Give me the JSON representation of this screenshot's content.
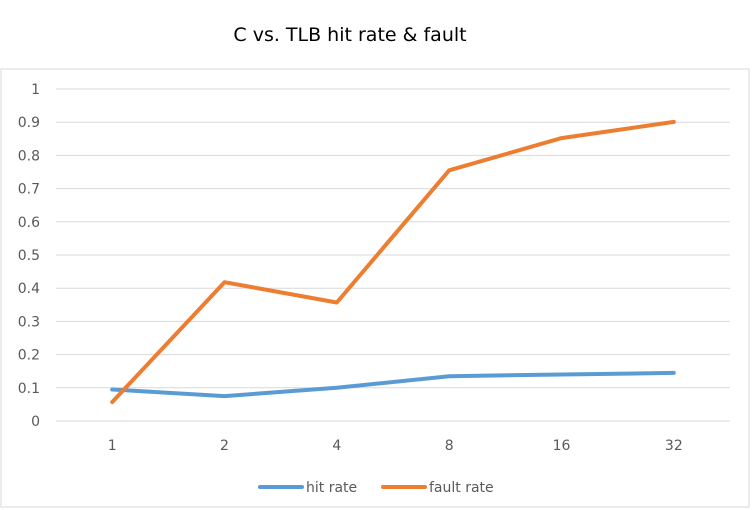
{
  "chart_data": {
    "type": "line",
    "title": "C vs. TLB hit rate & fault",
    "xlabel": "",
    "ylabel": "",
    "categories": [
      "1",
      "2",
      "4",
      "8",
      "16",
      "32"
    ],
    "series": [
      {
        "name": "hit rate",
        "color": "#5b9bd5",
        "values": [
          0.095,
          0.075,
          0.1,
          0.135,
          0.14,
          0.145
        ]
      },
      {
        "name": "fault rate",
        "color": "#ed7d31",
        "values": [
          0.057,
          0.418,
          0.357,
          0.755,
          0.852,
          0.901
        ]
      }
    ],
    "ylim": [
      0,
      1
    ],
    "yticks": [
      "0",
      "0.1",
      "0.2",
      "0.3",
      "0.4",
      "0.5",
      "0.6",
      "0.7",
      "0.8",
      "0.9",
      "1"
    ],
    "grid": true,
    "legend": "bottom",
    "gridline_color": "#d9d9d9",
    "border_color": "#d9d9d9"
  }
}
